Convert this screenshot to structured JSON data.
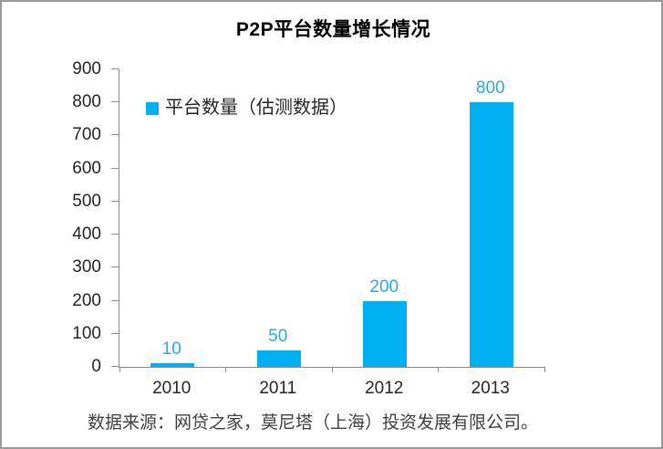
{
  "chart_data": {
    "type": "bar",
    "title": "P2P平台数量增长情况",
    "series_name": "平台数量（估测数据）",
    "categories": [
      "2010",
      "2011",
      "2012",
      "2013"
    ],
    "values": [
      10,
      50,
      200,
      800
    ],
    "data_labels": [
      "10",
      "50",
      "200",
      "800"
    ],
    "ylim": [
      0,
      900
    ],
    "ytick_step": 100,
    "ytick_labels": [
      "0",
      "100",
      "200",
      "300",
      "400",
      "500",
      "600",
      "700",
      "800",
      "900"
    ],
    "grid": false,
    "legend_position": "inside-top-left",
    "source_note": "数据来源：网贷之家，莫尼塔（上海）投资发展有限公司。",
    "colors": {
      "bar": "#00b0f0",
      "value_label": "#2aa9e0",
      "legend_swatch": "#00b0f0",
      "axis": "#8c8c8c",
      "axis_text": "#262626",
      "source_text": "#404040",
      "frame_border": "#9a9a9a",
      "background": "#ffffff"
    }
  }
}
